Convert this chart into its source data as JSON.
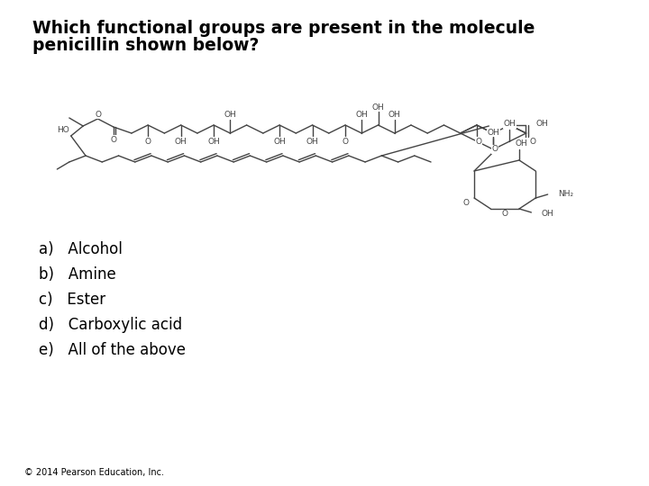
{
  "title_line1": "Which functional groups are present in the molecule",
  "title_line2": "penicillin shown below?",
  "options": [
    "a)   Alcohol",
    "b)   Amine",
    "c)   Ester",
    "d)   Carboxylic acid",
    "e)   All of the above"
  ],
  "footer": "© 2014 Pearson Education, Inc.",
  "bg_color": "#ffffff",
  "text_color": "#000000",
  "mol_color": "#444444",
  "title_fontsize": 13.5,
  "option_fontsize": 12,
  "label_fontsize": 6.5,
  "footer_fontsize": 7
}
